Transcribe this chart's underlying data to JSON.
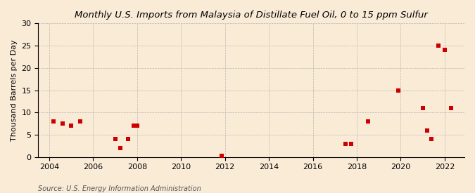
{
  "title": "Monthly U.S. Imports from Malaysia of Distillate Fuel Oil, 0 to 15 ppm Sulfur",
  "ylabel": "Thousand Barrels per Day",
  "source": "Source: U.S. Energy Information Administration",
  "background_color": "#faebd7",
  "scatter_color": "#cc0000",
  "marker": "s",
  "marker_size": 20,
  "xlim": [
    2003.5,
    2022.9
  ],
  "ylim": [
    0,
    30
  ],
  "yticks": [
    0,
    5,
    10,
    15,
    20,
    25,
    30
  ],
  "xticks": [
    2004,
    2006,
    2008,
    2010,
    2012,
    2014,
    2016,
    2018,
    2020,
    2022
  ],
  "data_x": [
    2004.2,
    2004.6,
    2005.0,
    2005.4,
    2007.0,
    2007.25,
    2007.6,
    2007.85,
    2008.0,
    2011.85,
    2017.5,
    2017.75,
    2018.5,
    2019.9,
    2021.0,
    2021.2,
    2021.4,
    2021.7,
    2022.0,
    2022.3
  ],
  "data_y": [
    8,
    7.5,
    7,
    8,
    4,
    2,
    4,
    7,
    7,
    0.3,
    3,
    3,
    8,
    15,
    11,
    6,
    4,
    25,
    24,
    11
  ],
  "title_fontsize": 9.5,
  "label_fontsize": 8,
  "tick_fontsize": 8,
  "source_fontsize": 7
}
